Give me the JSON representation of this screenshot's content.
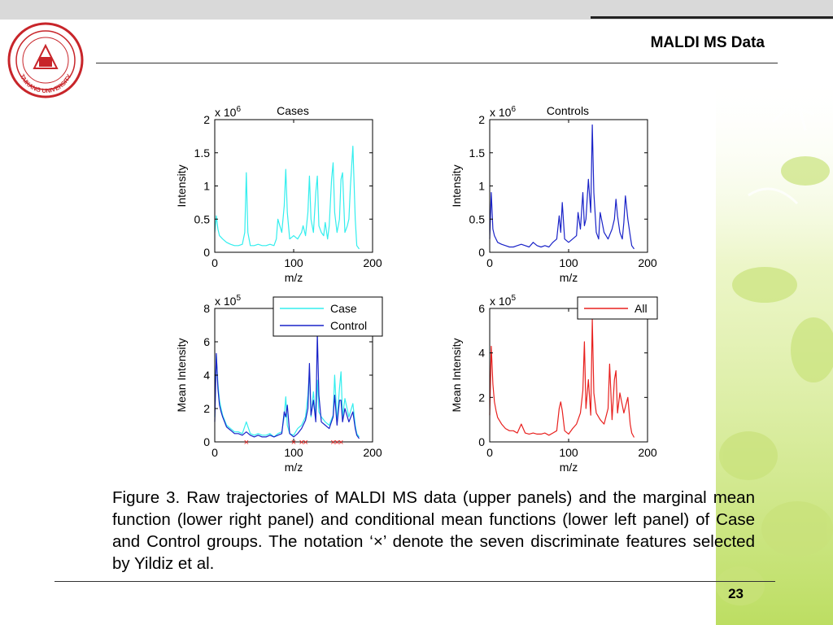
{
  "header": {
    "title": "MALDI MS Data"
  },
  "logo": {
    "text": "TAIKANG UNIVERSITY"
  },
  "figure": {
    "caption": "Figure 3. Raw trajectories of MALDI MS data (upper panels) and the marginal mean function (lower right panel) and conditional mean functions (lower left panel) of Case and Control groups. The notation ‘×’ denote the seven discriminate features selected by Yildiz et al."
  },
  "footer": {
    "page_number": "23"
  },
  "colors": {
    "case": "#33eeee",
    "control": "#1a23c8",
    "all": "#e8201e",
    "marker": "#e8201e"
  },
  "chart_data": [
    {
      "type": "line",
      "title": "Cases",
      "exponent_label": "x 10^6",
      "xlabel": "m/z",
      "ylabel": "Intensity",
      "xlim": [
        0,
        200
      ],
      "ylim": [
        0,
        2
      ],
      "xticks": [
        "0",
        "100",
        "200"
      ],
      "yticks": [
        "0",
        "0.5",
        "1",
        "1.5",
        "2"
      ],
      "series": [
        {
          "color": "#33eeee",
          "x": [
            0,
            2,
            4,
            6,
            10,
            15,
            20,
            25,
            30,
            35,
            38,
            40,
            42,
            45,
            50,
            55,
            60,
            65,
            70,
            75,
            78,
            80,
            85,
            88,
            90,
            92,
            95,
            100,
            105,
            110,
            112,
            115,
            118,
            120,
            122,
            125,
            128,
            130,
            132,
            135,
            138,
            140,
            143,
            145,
            148,
            150,
            152,
            155,
            158,
            160,
            162,
            165,
            168,
            170,
            172,
            175,
            178,
            180,
            183
          ],
          "y": [
            0.3,
            0.55,
            0.35,
            0.25,
            0.2,
            0.15,
            0.12,
            0.1,
            0.1,
            0.12,
            0.3,
            1.2,
            0.3,
            0.1,
            0.1,
            0.12,
            0.1,
            0.1,
            0.12,
            0.1,
            0.2,
            0.5,
            0.3,
            0.7,
            1.25,
            0.6,
            0.2,
            0.25,
            0.2,
            0.3,
            0.4,
            0.25,
            0.6,
            1.15,
            0.5,
            0.3,
            0.9,
            1.15,
            0.4,
            0.3,
            0.25,
            0.45,
            0.2,
            0.4,
            1.1,
            1.35,
            0.6,
            0.3,
            0.5,
            1.1,
            1.2,
            0.3,
            0.4,
            0.5,
            1.0,
            1.6,
            0.5,
            0.1,
            0.05
          ]
        }
      ]
    },
    {
      "type": "line",
      "title": "Controls",
      "exponent_label": "x 10^6",
      "xlabel": "m/z",
      "ylabel": "Intensity",
      "xlim": [
        0,
        200
      ],
      "ylim": [
        0,
        2
      ],
      "xticks": [
        "0",
        "100",
        "200"
      ],
      "yticks": [
        "0",
        "0.5",
        "1",
        "1.5",
        "2"
      ],
      "series": [
        {
          "color": "#1a23c8",
          "x": [
            0,
            2,
            4,
            6,
            10,
            15,
            20,
            25,
            30,
            35,
            40,
            45,
            50,
            55,
            60,
            65,
            70,
            75,
            80,
            85,
            88,
            90,
            92,
            95,
            100,
            105,
            110,
            112,
            115,
            118,
            120,
            122,
            125,
            128,
            130,
            132,
            135,
            138,
            140,
            145,
            150,
            155,
            158,
            160,
            162,
            165,
            168,
            170,
            172,
            175,
            178,
            180,
            183
          ],
          "y": [
            0.2,
            0.9,
            0.35,
            0.25,
            0.15,
            0.12,
            0.1,
            0.08,
            0.08,
            0.1,
            0.12,
            0.1,
            0.08,
            0.15,
            0.1,
            0.08,
            0.1,
            0.08,
            0.15,
            0.2,
            0.55,
            0.3,
            0.75,
            0.2,
            0.15,
            0.2,
            0.25,
            0.6,
            0.35,
            0.9,
            0.4,
            0.5,
            1.1,
            0.6,
            1.92,
            0.9,
            0.3,
            0.2,
            0.6,
            0.3,
            0.2,
            0.35,
            0.5,
            0.8,
            0.55,
            0.3,
            0.2,
            0.45,
            0.85,
            0.5,
            0.25,
            0.1,
            0.05
          ]
        }
      ]
    },
    {
      "type": "line",
      "exponent_label": "x 10^5",
      "xlabel": "m/z",
      "ylabel": "Mean Intensity",
      "xlim": [
        0,
        200
      ],
      "ylim": [
        0,
        8
      ],
      "xticks": [
        "0",
        "100",
        "200"
      ],
      "yticks": [
        "0",
        "2",
        "4",
        "6",
        "8"
      ],
      "legend": {
        "placement": "top-right",
        "entries": [
          "Case",
          "Control"
        ]
      },
      "markers_x": [
        40,
        100,
        110,
        115,
        150,
        155,
        160
      ],
      "series": [
        {
          "name": "Case",
          "color": "#33eeee",
          "x": [
            0,
            2,
            4,
            6,
            8,
            10,
            15,
            20,
            25,
            30,
            35,
            40,
            45,
            50,
            55,
            60,
            65,
            70,
            75,
            80,
            85,
            88,
            90,
            92,
            95,
            100,
            105,
            110,
            115,
            118,
            120,
            122,
            125,
            128,
            130,
            132,
            135,
            140,
            145,
            150,
            152,
            155,
            158,
            160,
            162,
            165,
            170,
            175,
            178,
            180,
            183
          ],
          "y": [
            1.5,
            5.2,
            3.5,
            2.5,
            2.0,
            1.6,
            1.0,
            0.8,
            0.6,
            0.6,
            0.5,
            1.2,
            0.5,
            0.4,
            0.5,
            0.4,
            0.4,
            0.5,
            0.3,
            0.5,
            0.6,
            1.5,
            2.7,
            1.0,
            0.5,
            0.4,
            0.8,
            1.0,
            1.5,
            2.8,
            4.2,
            1.5,
            3.0,
            1.5,
            3.7,
            1.8,
            1.5,
            1.2,
            1.0,
            1.6,
            4.0,
            1.2,
            3.2,
            4.2,
            1.5,
            2.6,
            1.5,
            2.3,
            1.0,
            0.5,
            0.3
          ]
        },
        {
          "name": "Control",
          "color": "#1a23c8",
          "x": [
            0,
            2,
            4,
            6,
            8,
            10,
            15,
            20,
            25,
            30,
            35,
            40,
            45,
            50,
            55,
            60,
            65,
            70,
            75,
            80,
            85,
            88,
            90,
            92,
            95,
            100,
            105,
            110,
            115,
            118,
            120,
            122,
            125,
            128,
            130,
            132,
            135,
            140,
            145,
            150,
            152,
            155,
            158,
            160,
            162,
            165,
            170,
            175,
            178,
            180,
            183
          ],
          "y": [
            1.2,
            5.3,
            3.2,
            2.2,
            1.8,
            1.5,
            0.9,
            0.7,
            0.5,
            0.5,
            0.4,
            0.6,
            0.4,
            0.3,
            0.4,
            0.3,
            0.3,
            0.4,
            0.3,
            0.4,
            0.5,
            1.8,
            1.5,
            2.2,
            0.5,
            0.3,
            0.5,
            0.8,
            1.3,
            2.0,
            4.7,
            1.6,
            2.5,
            1.2,
            6.5,
            2.8,
            1.2,
            1.0,
            0.8,
            1.5,
            2.8,
            1.0,
            2.5,
            2.5,
            1.2,
            2.0,
            1.2,
            1.8,
            0.8,
            0.4,
            0.2
          ]
        }
      ]
    },
    {
      "type": "line",
      "exponent_label": "x 10^5",
      "xlabel": "m/z",
      "ylabel": "Mean Intensity",
      "xlim": [
        0,
        200
      ],
      "ylim": [
        0,
        6
      ],
      "xticks": [
        "0",
        "100",
        "200"
      ],
      "yticks": [
        "0",
        "2",
        "4",
        "6"
      ],
      "legend": {
        "placement": "top-right",
        "entries": [
          "All"
        ]
      },
      "series": [
        {
          "name": "All",
          "color": "#e8201e",
          "x": [
            0,
            2,
            4,
            6,
            8,
            10,
            15,
            20,
            25,
            30,
            35,
            40,
            45,
            50,
            55,
            60,
            65,
            70,
            75,
            80,
            85,
            88,
            90,
            92,
            95,
            100,
            105,
            110,
            115,
            118,
            120,
            122,
            125,
            128,
            130,
            132,
            135,
            140,
            145,
            150,
            152,
            155,
            158,
            160,
            162,
            165,
            170,
            175,
            178,
            180,
            183
          ],
          "y": [
            1.2,
            4.3,
            2.6,
            1.8,
            1.4,
            1.1,
            0.8,
            0.6,
            0.5,
            0.5,
            0.4,
            0.8,
            0.4,
            0.35,
            0.4,
            0.35,
            0.35,
            0.4,
            0.3,
            0.4,
            0.5,
            1.5,
            1.8,
            1.4,
            0.5,
            0.35,
            0.6,
            0.8,
            1.3,
            2.3,
            4.5,
            1.5,
            2.8,
            1.2,
            5.5,
            2.2,
            1.3,
            1.0,
            0.8,
            1.5,
            3.5,
            1.0,
            2.8,
            3.2,
            1.3,
            2.2,
            1.3,
            2.0,
            0.8,
            0.4,
            0.2
          ]
        }
      ]
    }
  ]
}
